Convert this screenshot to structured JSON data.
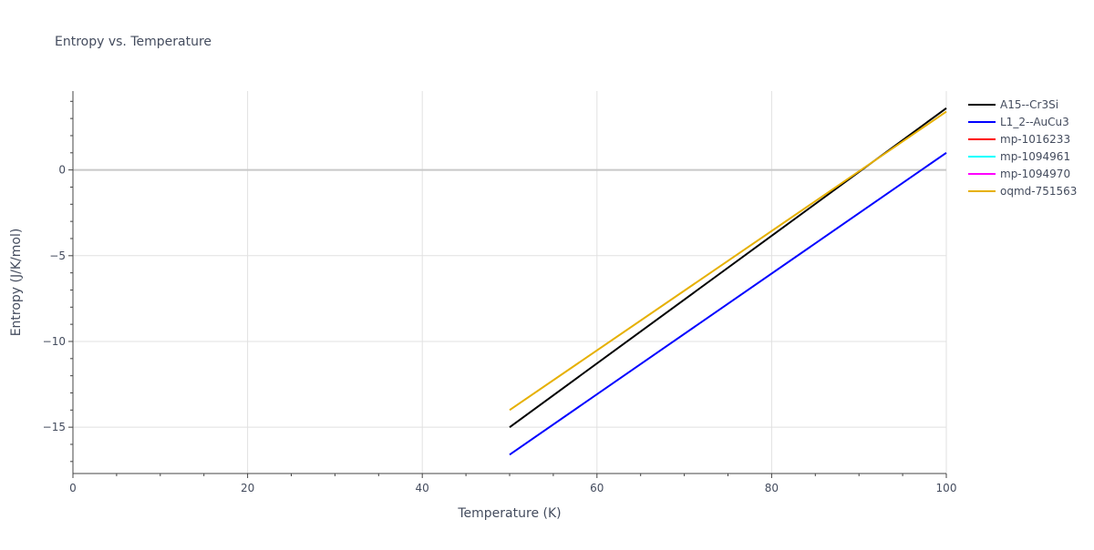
{
  "chart_data": {
    "type": "line",
    "title": "Entropy vs. Temperature",
    "xlabel": "Temperature (K)",
    "ylabel": "Entropy (J/K/mol)",
    "xlim": [
      0,
      100
    ],
    "ylim": [
      -17.7,
      4.6
    ],
    "x_ticks": [
      0,
      20,
      40,
      60,
      80,
      100
    ],
    "x_tick_labels": [
      "0",
      "20",
      "40",
      "60",
      "80",
      "100"
    ],
    "y_ticks": [
      -15,
      -10,
      -5,
      0
    ],
    "y_tick_labels": [
      "−15",
      "−10",
      "−5",
      "0"
    ],
    "grid": true,
    "legend_position": "right",
    "series": [
      {
        "name": "A15--Cr3Si",
        "color": "#000000",
        "x": [
          50,
          100
        ],
        "y": [
          -15.0,
          3.6
        ]
      },
      {
        "name": "L1_2--AuCu3",
        "color": "#0000ff",
        "x": [
          50,
          100
        ],
        "y": [
          -16.6,
          1.0
        ]
      },
      {
        "name": "mp-1016233",
        "color": "#ff0000",
        "x": [],
        "y": []
      },
      {
        "name": "mp-1094961",
        "color": "#00ffff",
        "x": [],
        "y": []
      },
      {
        "name": "mp-1094970",
        "color": "#ff00ff",
        "x": [],
        "y": []
      },
      {
        "name": "oqmd-751563",
        "color": "#e6b000",
        "x": [
          50,
          100
        ],
        "y": [
          -14.0,
          3.4
        ]
      }
    ]
  }
}
